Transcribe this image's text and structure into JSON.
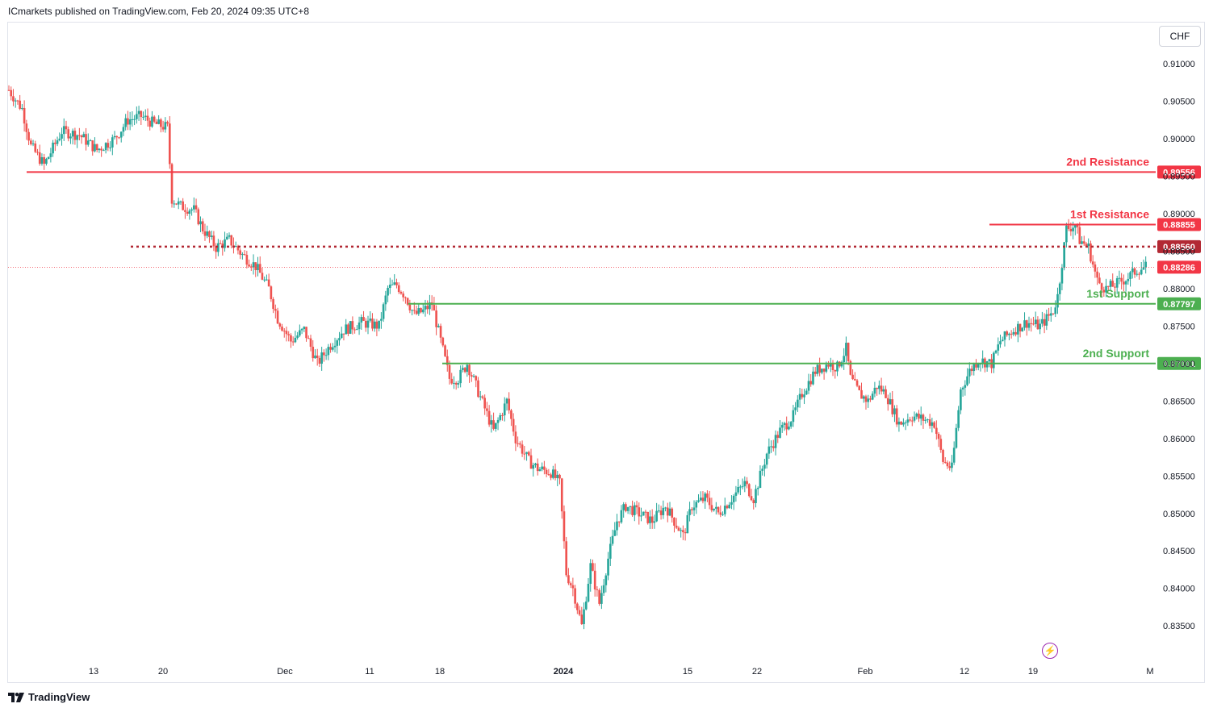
{
  "header": {
    "published": "ICmarkets published on TradingView.com, Feb 20, 2024 09:35 UTC+8"
  },
  "currency_label": "CHF",
  "footer": {
    "brand": "TradingView"
  },
  "colors": {
    "up": "#26a69a",
    "down": "#ef5350",
    "resistance": "#f23645",
    "support": "#4caf50",
    "dotted": "#b22833",
    "axis_text": "#131722"
  },
  "chart_data": {
    "type": "candlestick",
    "title": "",
    "ylim": [
      0.8305,
      0.9155
    ],
    "y_ticks": [
      "0.91000",
      "0.90500",
      "0.90000",
      "0.89500",
      "0.89000",
      "0.88500",
      "0.88000",
      "0.87500",
      "0.87000",
      "0.86500",
      "0.86000",
      "0.85500",
      "0.85000",
      "0.84500",
      "0.84000",
      "0.83500"
    ],
    "x_ticks": [
      "13",
      "20",
      "Dec",
      "11",
      "18",
      "2024",
      "15",
      "22",
      "Feb",
      "12",
      "19",
      "M"
    ],
    "levels": [
      {
        "name": "2nd Resistance",
        "value": "0.89556",
        "style": "solid",
        "kind": "resistance"
      },
      {
        "name": "1st Resistance",
        "value": "0.88855",
        "style": "solid",
        "kind": "resistance"
      },
      {
        "name": "",
        "value": "0.88560",
        "style": "dotted",
        "kind": "pivot"
      },
      {
        "name": "",
        "value": "0.88286",
        "style": "price",
        "kind": "current"
      },
      {
        "name": "1st Support",
        "value": "0.87797",
        "style": "solid",
        "kind": "support"
      },
      {
        "name": "2nd Support",
        "value": "0.87001",
        "style": "solid",
        "kind": "support"
      }
    ],
    "price_path": [
      [
        0,
        0.9065
      ],
      [
        6,
        0.904
      ],
      [
        10,
        0.899
      ],
      [
        16,
        0.8965
      ],
      [
        24,
        0.901
      ],
      [
        32,
        0.9005
      ],
      [
        40,
        0.8985
      ],
      [
        48,
        0.9
      ],
      [
        54,
        0.9025
      ],
      [
        60,
        0.903
      ],
      [
        66,
        0.902
      ],
      [
        72,
        0.9015
      ],
      [
        74,
        0.892
      ],
      [
        78,
        0.891
      ],
      [
        84,
        0.8905
      ],
      [
        88,
        0.888
      ],
      [
        94,
        0.8855
      ],
      [
        100,
        0.8865
      ],
      [
        106,
        0.8845
      ],
      [
        112,
        0.883
      ],
      [
        118,
        0.88
      ],
      [
        122,
        0.876
      ],
      [
        128,
        0.873
      ],
      [
        134,
        0.8745
      ],
      [
        140,
        0.87
      ],
      [
        146,
        0.8725
      ],
      [
        152,
        0.8745
      ],
      [
        160,
        0.8755
      ],
      [
        168,
        0.875
      ],
      [
        172,
        0.88
      ],
      [
        176,
        0.8805
      ],
      [
        180,
        0.879
      ],
      [
        184,
        0.8765
      ],
      [
        188,
        0.877
      ],
      [
        192,
        0.878
      ],
      [
        196,
        0.873
      ],
      [
        200,
        0.868
      ],
      [
        204,
        0.868
      ],
      [
        208,
        0.87
      ],
      [
        212,
        0.867
      ],
      [
        216,
        0.864
      ],
      [
        220,
        0.861
      ],
      [
        226,
        0.865
      ],
      [
        230,
        0.86
      ],
      [
        236,
        0.857
      ],
      [
        240,
        0.856
      ],
      [
        246,
        0.8555
      ],
      [
        250,
        0.854
      ],
      [
        253,
        0.842
      ],
      [
        256,
        0.84
      ],
      [
        260,
        0.835
      ],
      [
        264,
        0.843
      ],
      [
        268,
        0.838
      ],
      [
        272,
        0.844
      ],
      [
        276,
        0.849
      ],
      [
        280,
        0.851
      ],
      [
        286,
        0.85
      ],
      [
        292,
        0.849
      ],
      [
        298,
        0.851
      ],
      [
        302,
        0.849
      ],
      [
        306,
        0.847
      ],
      [
        310,
        0.851
      ],
      [
        316,
        0.852
      ],
      [
        322,
        0.85
      ],
      [
        328,
        0.852
      ],
      [
        334,
        0.854
      ],
      [
        338,
        0.852
      ],
      [
        344,
        0.858
      ],
      [
        350,
        0.861
      ],
      [
        356,
        0.863
      ],
      [
        360,
        0.866
      ],
      [
        366,
        0.869
      ],
      [
        372,
        0.87
      ],
      [
        376,
        0.8695
      ],
      [
        380,
        0.872
      ],
      [
        382,
        0.868
      ],
      [
        386,
        0.866
      ],
      [
        390,
        0.865
      ],
      [
        394,
        0.867
      ],
      [
        398,
        0.866
      ],
      [
        404,
        0.862
      ],
      [
        410,
        0.863
      ],
      [
        416,
        0.8625
      ],
      [
        420,
        0.862
      ],
      [
        424,
        0.857
      ],
      [
        428,
        0.856
      ],
      [
        432,
        0.8665
      ],
      [
        436,
        0.869
      ],
      [
        440,
        0.8705
      ],
      [
        446,
        0.87
      ],
      [
        450,
        0.873
      ],
      [
        456,
        0.8745
      ],
      [
        462,
        0.8755
      ],
      [
        468,
        0.875
      ],
      [
        474,
        0.877
      ],
      [
        476,
        0.879
      ],
      [
        480,
        0.888
      ],
      [
        484,
        0.8885
      ],
      [
        486,
        0.8865
      ],
      [
        490,
        0.8855
      ],
      [
        494,
        0.881
      ],
      [
        498,
        0.88
      ],
      [
        502,
        0.8805
      ],
      [
        508,
        0.8815
      ],
      [
        512,
        0.8825
      ],
      [
        516,
        0.8829
      ]
    ]
  }
}
